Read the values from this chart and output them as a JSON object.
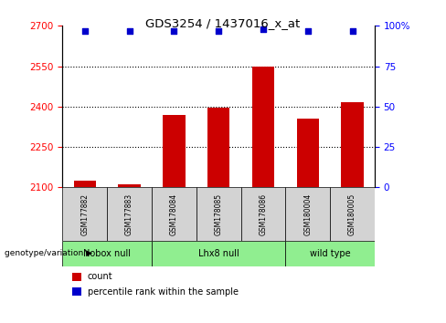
{
  "title": "GDS3254 / 1437016_x_at",
  "samples": [
    "GSM177882",
    "GSM177883",
    "GSM178084",
    "GSM178085",
    "GSM178086",
    "GSM180004",
    "GSM180005"
  ],
  "counts": [
    2125,
    2110,
    2370,
    2395,
    2550,
    2355,
    2415
  ],
  "percentiles": [
    97,
    97,
    97,
    97,
    98,
    97,
    97
  ],
  "ylim_left": [
    2100,
    2700
  ],
  "ylim_right": [
    0,
    100
  ],
  "yticks_left": [
    2100,
    2250,
    2400,
    2550,
    2700
  ],
  "yticks_right": [
    0,
    25,
    50,
    75,
    100
  ],
  "ytick_right_labels": [
    "0",
    "25",
    "50",
    "75",
    "100%"
  ],
  "bar_color": "#cc0000",
  "dot_color": "#0000cc",
  "dot_size": 16,
  "group_spans": [
    [
      0,
      1,
      "Nobox null"
    ],
    [
      2,
      4,
      "Lhx8 null"
    ],
    [
      5,
      6,
      "wild type"
    ]
  ],
  "group_color": "#90EE90",
  "sample_bg_color": "#d3d3d3",
  "legend_count_color": "#cc0000",
  "legend_pct_color": "#0000cc",
  "legend_count_label": "count",
  "legend_pct_label": "percentile rank within the sample",
  "genotype_label": "genotype/variation",
  "hgrid_vals": [
    2250,
    2400,
    2550
  ],
  "bar_width": 0.5
}
